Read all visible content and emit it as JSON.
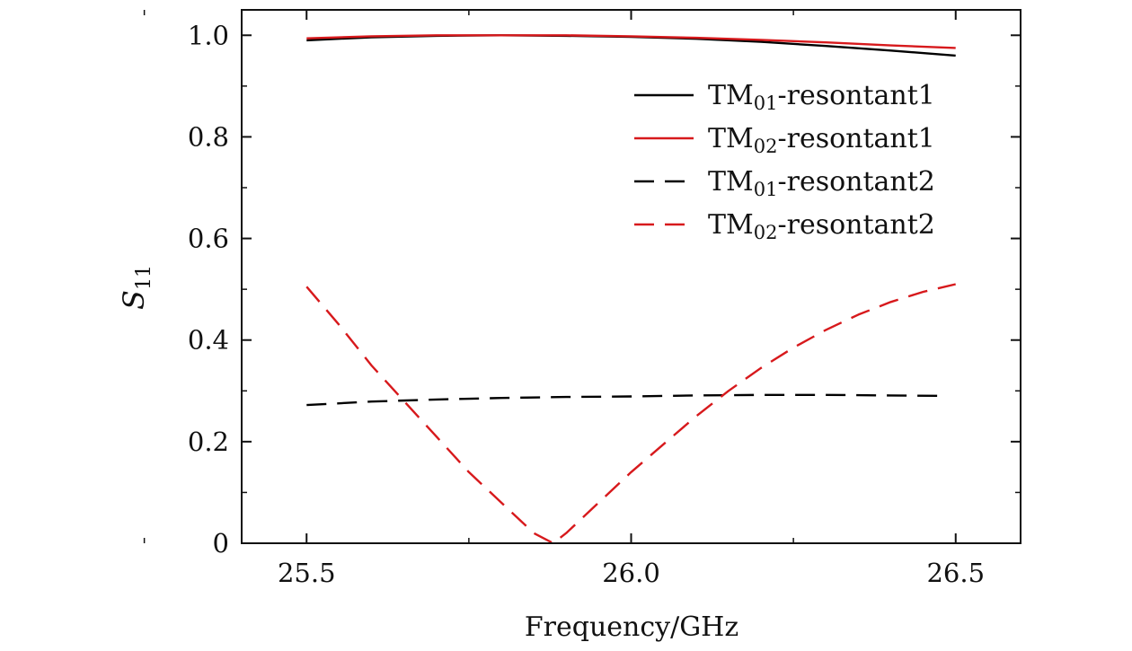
{
  "chart_data": {
    "type": "line",
    "xlabel": "Frequency/GHz",
    "ylabel": "S",
    "ylabel_subscript": "11",
    "xlim": [
      25.4,
      26.6
    ],
    "ylim": [
      0,
      1.05
    ],
    "xticks": [
      25.5,
      26.0,
      26.5
    ],
    "xtick_labels": [
      "25.5",
      "26.0",
      "26.5"
    ],
    "yticks": [
      0,
      0.2,
      0.4,
      0.6,
      0.8,
      1.0
    ],
    "ytick_labels": [
      "0",
      "0.2",
      "0.4",
      "0.6",
      "0.8",
      "1.0"
    ],
    "grid": false,
    "legend_position": "upper-right",
    "series": [
      {
        "name_prefix": "TM",
        "name_sub": "01",
        "name_suffix": "-resontant1",
        "color": "#000000",
        "dash": "solid",
        "x": [
          25.5,
          25.6,
          25.7,
          25.8,
          25.9,
          26.0,
          26.1,
          26.2,
          26.3,
          26.4,
          26.5
        ],
        "y": [
          0.99,
          0.996,
          0.999,
          1.0,
          0.999,
          0.997,
          0.993,
          0.987,
          0.979,
          0.97,
          0.96
        ]
      },
      {
        "name_prefix": "TM",
        "name_sub": "02",
        "name_suffix": "-resontant1",
        "color": "#d7191c",
        "dash": "solid",
        "x": [
          25.5,
          25.6,
          25.7,
          25.8,
          25.9,
          26.0,
          26.1,
          26.2,
          26.3,
          26.4,
          26.5
        ],
        "y": [
          0.994,
          0.998,
          1.0,
          1.0,
          1.0,
          0.998,
          0.995,
          0.991,
          0.986,
          0.98,
          0.975
        ]
      },
      {
        "name_prefix": "TM",
        "name_sub": "01",
        "name_suffix": "-resontant2",
        "color": "#000000",
        "dash": "dashed",
        "x": [
          25.5,
          25.6,
          25.7,
          25.8,
          25.9,
          26.0,
          26.1,
          26.2,
          26.3,
          26.4,
          26.48
        ],
        "y": [
          0.272,
          0.279,
          0.283,
          0.286,
          0.288,
          0.289,
          0.291,
          0.292,
          0.292,
          0.291,
          0.29
        ]
      },
      {
        "name_prefix": "TM",
        "name_sub": "02",
        "name_suffix": "-resontant2",
        "color": "#d7191c",
        "dash": "dashed",
        "x": [
          25.5,
          25.55,
          25.6,
          25.65,
          25.7,
          25.75,
          25.8,
          25.85,
          25.88,
          25.9,
          25.95,
          26.0,
          26.05,
          26.1,
          26.15,
          26.2,
          26.25,
          26.3,
          26.35,
          26.4,
          26.45,
          26.5
        ],
        "y": [
          0.505,
          0.43,
          0.35,
          0.28,
          0.21,
          0.14,
          0.08,
          0.02,
          0.0,
          0.02,
          0.08,
          0.14,
          0.195,
          0.25,
          0.3,
          0.345,
          0.385,
          0.42,
          0.45,
          0.475,
          0.495,
          0.51
        ]
      }
    ]
  }
}
